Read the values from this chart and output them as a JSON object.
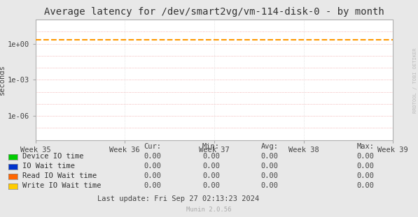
{
  "title": "Average latency for /dev/smart2vg/vm-114-disk-0 - by month",
  "ylabel": "seconds",
  "background_color": "#e8e8e8",
  "plot_bg_color": "#ffffff",
  "grid_color_pink": "#f0a0a0",
  "grid_color_minor": "#d8d8d8",
  "x_ticks": [
    "Week 35",
    "Week 36",
    "Week 37",
    "Week 38",
    "Week 39"
  ],
  "dashed_line_y": 2.0,
  "dashed_line_color": "#ff9900",
  "legend_entries": [
    {
      "label": "Device IO time",
      "color": "#00cc00"
    },
    {
      "label": "IO Wait time",
      "color": "#0033cc"
    },
    {
      "label": "Read IO Wait time",
      "color": "#ff6600"
    },
    {
      "label": "Write IO Wait time",
      "color": "#ffcc00"
    }
  ],
  "table_headers": [
    "Cur:",
    "Min:",
    "Avg:",
    "Max:"
  ],
  "table_values": [
    [
      0.0,
      0.0,
      0.0,
      0.0
    ],
    [
      0.0,
      0.0,
      0.0,
      0.0
    ],
    [
      0.0,
      0.0,
      0.0,
      0.0
    ],
    [
      0.0,
      0.0,
      0.0,
      0.0
    ]
  ],
  "last_update": "Last update: Fri Sep 27 02:13:23 2024",
  "munin_version": "Munin 2.0.56",
  "watermark": "RRDTOOL / TOBI OETIKER",
  "title_fontsize": 10,
  "axis_fontsize": 7.5,
  "legend_fontsize": 7.5,
  "table_fontsize": 7.5
}
